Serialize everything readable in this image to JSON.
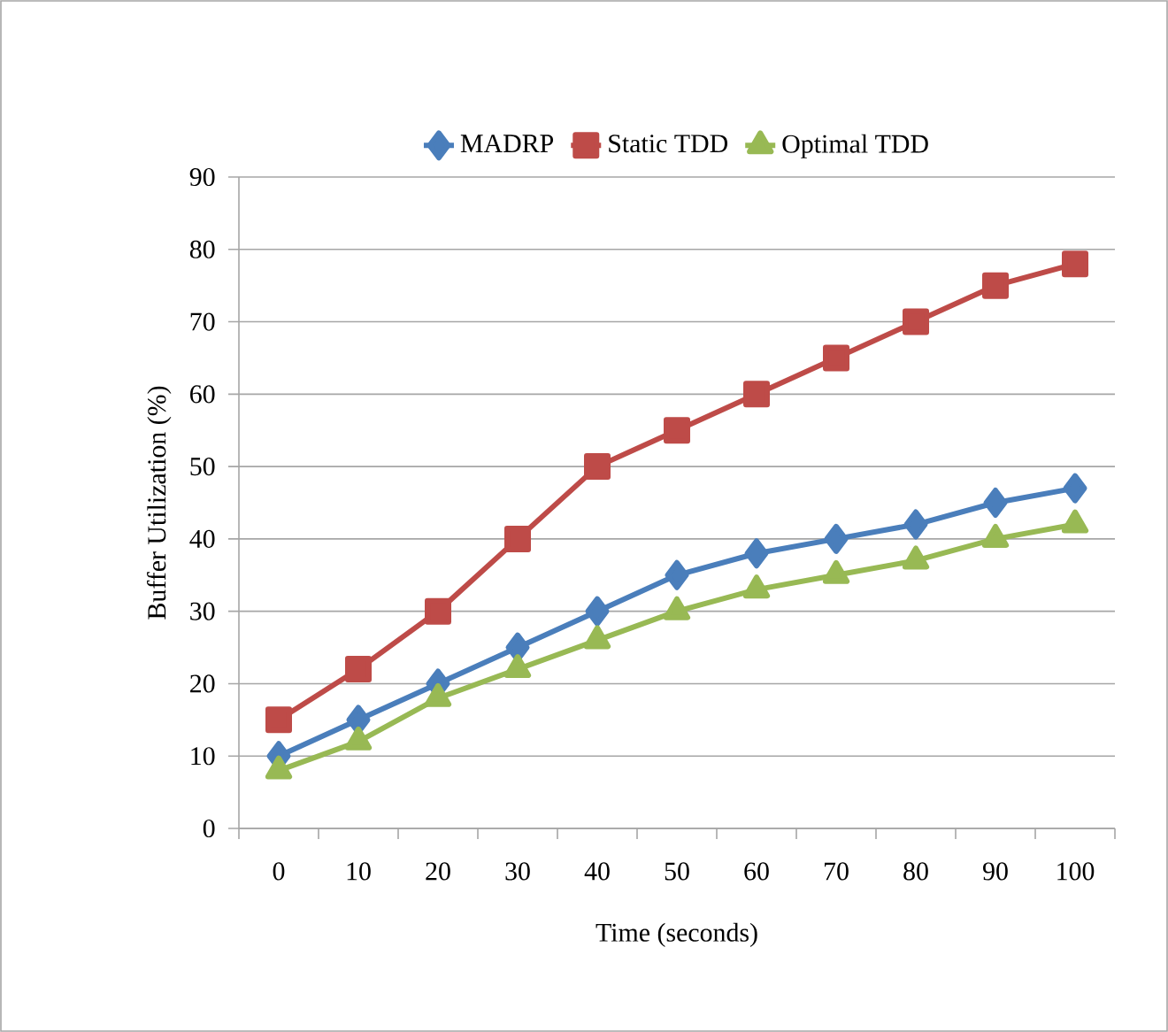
{
  "chart_data": {
    "type": "line",
    "xlabel": "Time (seconds)",
    "ylabel": "Buffer Utilization (%)",
    "categories": [
      "0",
      "10",
      "20",
      "30",
      "40",
      "50",
      "60",
      "70",
      "80",
      "90",
      "100"
    ],
    "series": [
      {
        "name": "MADRP",
        "color": "#4a7ebb",
        "marker": "diamond",
        "values": [
          10,
          15,
          20,
          25,
          30,
          35,
          38,
          40,
          42,
          45,
          47
        ]
      },
      {
        "name": "Static TDD",
        "color": "#be4b48",
        "marker": "square",
        "values": [
          15,
          22,
          30,
          40,
          50,
          55,
          60,
          65,
          70,
          75,
          78
        ]
      },
      {
        "name": "Optimal TDD",
        "color": "#98b954",
        "marker": "triangle",
        "values": [
          8,
          12,
          18,
          22,
          26,
          30,
          33,
          35,
          37,
          40,
          42
        ]
      }
    ],
    "ylim": [
      0,
      90
    ],
    "yticks": [
      0,
      10,
      20,
      30,
      40,
      50,
      60,
      70,
      80,
      90
    ],
    "grid": "y",
    "legend": "top",
    "line_style": "solid"
  }
}
